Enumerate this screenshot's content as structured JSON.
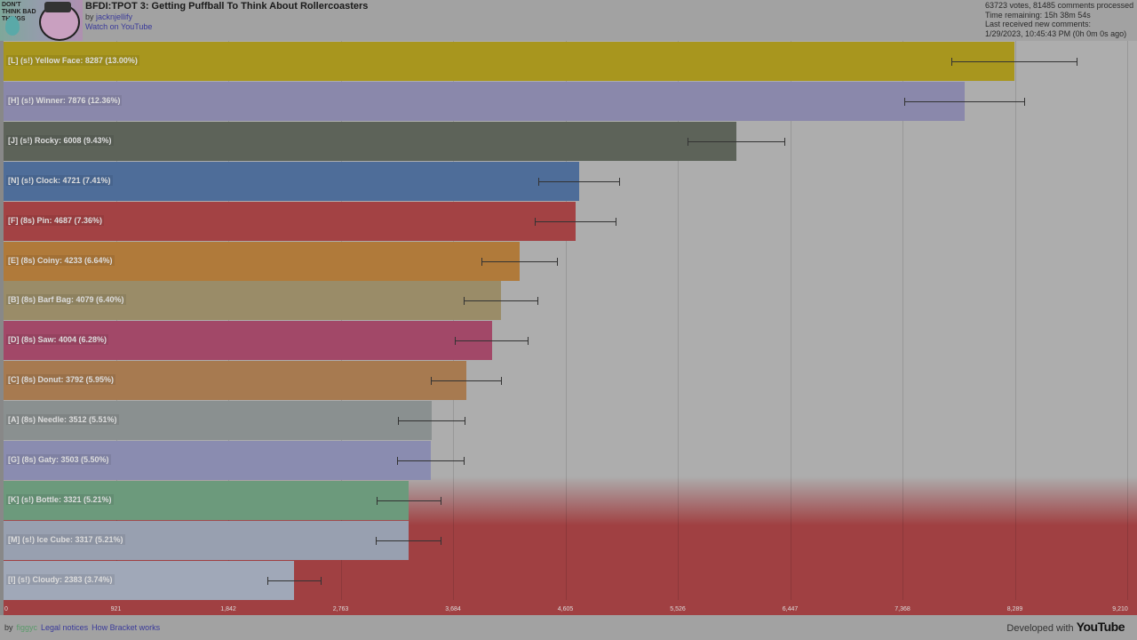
{
  "header": {
    "title": "BFDI:TPOT 3: Getting Puffball To Think About Rollercoasters",
    "by_prefix": "by",
    "author": "jacknjellify",
    "watch_link": "Watch on YouTube",
    "thumbnail_text": "DON'T THINK BAD THINGS",
    "stats": [
      "63723 votes, 81485 comments processed",
      "Time remaining: 15h 38m 54s",
      "Last received new comments:",
      "1/29/2023, 10:45:43 PM (0h 0m 0s ago)"
    ]
  },
  "chart_data": {
    "type": "bar",
    "orientation": "horizontal",
    "xlim": [
      0,
      9210
    ],
    "x_ticks": [
      "0",
      "921",
      "1,842",
      "2,763",
      "3,684",
      "4,605",
      "5,526",
      "6,447",
      "7,368",
      "8,289",
      "9,210"
    ],
    "grid": true,
    "bars": [
      {
        "label": "[L] (s!) Yellow Face: 8287 (13.00%)",
        "value": 8287,
        "error": 517,
        "color": "#a8961e"
      },
      {
        "label": "[H] (s!) Winner: 7876 (12.36%)",
        "value": 7876,
        "error": 495,
        "color": "#8a88ab"
      },
      {
        "label": "[J] (s!) Rocky: 6008 (9.43%)",
        "value": 6008,
        "error": 400,
        "color": "#5d6359"
      },
      {
        "label": "[N] (s!) Clock: 4721 (7.41%)",
        "value": 4721,
        "error": 335,
        "color": "#4e6d99"
      },
      {
        "label": "[F] (8s) Pin: 4687 (7.36%)",
        "value": 4687,
        "error": 335,
        "color": "#a34244"
      },
      {
        "label": "[E] (8s) Coiny: 4233 (6.64%)",
        "value": 4233,
        "error": 313,
        "color": "#b07a3a"
      },
      {
        "label": "[B] (8s) Barf Bag: 4079 (6.40%)",
        "value": 4079,
        "error": 306,
        "color": "#9a8c68"
      },
      {
        "label": "[D] (8s) Saw: 4004 (6.28%)",
        "value": 4004,
        "error": 302,
        "color": "#a24868"
      },
      {
        "label": "[C] (8s) Donut: 3792 (5.95%)",
        "value": 3792,
        "error": 291,
        "color": "#a77a50"
      },
      {
        "label": "[A] (8s) Needle: 3512 (5.51%)",
        "value": 3512,
        "error": 277,
        "color": "#8a9090"
      },
      {
        "label": "[G] (8s) Gaty: 3503 (5.50%)",
        "value": 3503,
        "error": 277,
        "color": "#8a8cb0"
      },
      {
        "label": "[K] (s!) Bottle: 3321 (5.21%)",
        "value": 3321,
        "error": 266,
        "color": "#6c9a7c"
      },
      {
        "label": "[M] (s!) Ice Cube: 3317 (5.21%)",
        "value": 3317,
        "error": 269,
        "color": "#98a0b0"
      },
      {
        "label": "[I] (s!) Cloudy: 2383 (3.74%)",
        "value": 2383,
        "error": 222,
        "color": "#a0a8b8"
      }
    ]
  },
  "footer": {
    "by": "by",
    "author": "figgyc",
    "legal": "Legal notices",
    "how": "How Bracket works",
    "developed": "Developed with",
    "youtube": "YouTube"
  }
}
